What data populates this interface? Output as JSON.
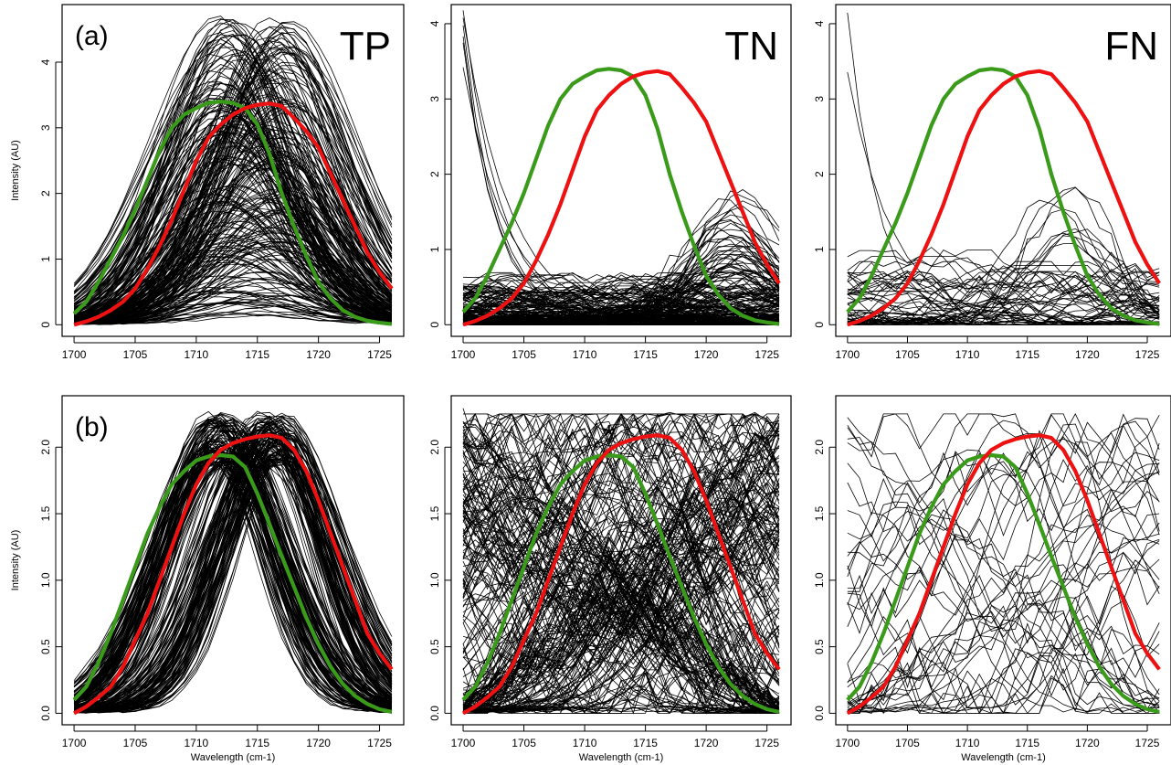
{
  "colors": {
    "reference_green": "#3a9a1a",
    "reference_red": "#ee1111",
    "sample_lines": "#000000"
  },
  "chart_data": [
    {
      "type": "line",
      "panel_id": "a-tp",
      "panel_tag": "(a)",
      "title": "TP",
      "ylabel": "Intensity (AU)",
      "xlabel": "",
      "xlim": [
        1700,
        1726
      ],
      "ylim": [
        0,
        4.7
      ],
      "x_ticks": [
        "1700",
        "1705",
        "1710",
        "1715",
        "1720",
        "1725"
      ],
      "y_ticks": [
        "0",
        "1",
        "2",
        "3",
        "4"
      ],
      "bundle": {
        "kind": "tp_gauss",
        "count": 260,
        "amp_min": 0.05,
        "amp_max": 4.7,
        "centers": [
          1712.5,
          1716.5
        ],
        "width": 5.2
      },
      "series": [
        {
          "color": "green",
          "x": [
            1700,
            1701,
            1702,
            1703,
            1704,
            1705,
            1706,
            1707,
            1708,
            1709,
            1710,
            1711,
            1712,
            1713,
            1714,
            1715,
            1716,
            1717,
            1718,
            1719,
            1720,
            1721,
            1722,
            1723,
            1724,
            1725,
            1726
          ],
          "values": [
            0.17,
            0.35,
            0.65,
            1.0,
            1.35,
            1.75,
            2.2,
            2.65,
            3.0,
            3.2,
            3.3,
            3.38,
            3.4,
            3.38,
            3.3,
            3.05,
            2.6,
            2.0,
            1.5,
            1.05,
            0.65,
            0.4,
            0.22,
            0.12,
            0.06,
            0.03,
            0.01
          ]
        },
        {
          "color": "red",
          "x": [
            1700,
            1701,
            1702,
            1703,
            1704,
            1705,
            1706,
            1707,
            1708,
            1709,
            1710,
            1711,
            1712,
            1713,
            1714,
            1715,
            1716,
            1717,
            1718,
            1719,
            1720,
            1721,
            1722,
            1723,
            1724,
            1725,
            1726
          ],
          "values": [
            0.0,
            0.05,
            0.12,
            0.22,
            0.35,
            0.55,
            0.85,
            1.2,
            1.6,
            2.05,
            2.5,
            2.85,
            3.05,
            3.2,
            3.3,
            3.35,
            3.37,
            3.33,
            3.15,
            2.95,
            2.7,
            2.3,
            1.9,
            1.5,
            1.1,
            0.8,
            0.55
          ]
        }
      ]
    },
    {
      "type": "line",
      "panel_id": "a-tn",
      "panel_tag": "",
      "title": "TN",
      "ylabel": "",
      "xlabel": "",
      "xlim": [
        1700,
        1726
      ],
      "ylim": [
        0,
        4.1
      ],
      "x_ticks": [
        "1700",
        "1705",
        "1710",
        "1715",
        "1720",
        "1725"
      ],
      "y_ticks": [
        "0",
        "1",
        "2",
        "3",
        "4"
      ],
      "bundle": {
        "kind": "tn_noise",
        "count": 160,
        "amp_max": 0.7,
        "hump_count": 40,
        "hump_center": 1722.5,
        "hump_amp_max": 1.75,
        "decay_count": 6
      },
      "series": [
        {
          "color": "green",
          "x": [
            1700,
            1701,
            1702,
            1703,
            1704,
            1705,
            1706,
            1707,
            1708,
            1709,
            1710,
            1711,
            1712,
            1713,
            1714,
            1715,
            1716,
            1717,
            1718,
            1719,
            1720,
            1721,
            1722,
            1723,
            1724,
            1725,
            1726
          ],
          "values": [
            0.17,
            0.35,
            0.65,
            1.0,
            1.35,
            1.75,
            2.2,
            2.65,
            3.0,
            3.2,
            3.3,
            3.38,
            3.4,
            3.38,
            3.3,
            3.05,
            2.6,
            2.0,
            1.5,
            1.05,
            0.65,
            0.4,
            0.22,
            0.12,
            0.06,
            0.03,
            0.01
          ]
        },
        {
          "color": "red",
          "x": [
            1700,
            1701,
            1702,
            1703,
            1704,
            1705,
            1706,
            1707,
            1708,
            1709,
            1710,
            1711,
            1712,
            1713,
            1714,
            1715,
            1716,
            1717,
            1718,
            1719,
            1720,
            1721,
            1722,
            1723,
            1724,
            1725,
            1726
          ],
          "values": [
            0.0,
            0.05,
            0.12,
            0.22,
            0.35,
            0.55,
            0.85,
            1.2,
            1.6,
            2.05,
            2.5,
            2.85,
            3.05,
            3.2,
            3.3,
            3.35,
            3.37,
            3.33,
            3.15,
            2.95,
            2.7,
            2.3,
            1.9,
            1.5,
            1.1,
            0.8,
            0.55
          ]
        }
      ]
    },
    {
      "type": "line",
      "panel_id": "a-fn",
      "panel_tag": "",
      "title": "FN",
      "ylabel": "",
      "xlabel": "",
      "xlim": [
        1700,
        1726
      ],
      "ylim": [
        0,
        4.1
      ],
      "x_ticks": [
        "1700",
        "1705",
        "1710",
        "1715",
        "1720",
        "1725"
      ],
      "y_ticks": [
        "0",
        "1",
        "2",
        "3",
        "4"
      ],
      "bundle": {
        "kind": "tn_noise",
        "count": 45,
        "amp_max": 1.1,
        "hump_count": 10,
        "hump_center": 1718,
        "hump_amp_max": 1.8,
        "decay_count": 2
      },
      "series": [
        {
          "color": "green",
          "x": [
            1700,
            1701,
            1702,
            1703,
            1704,
            1705,
            1706,
            1707,
            1708,
            1709,
            1710,
            1711,
            1712,
            1713,
            1714,
            1715,
            1716,
            1717,
            1718,
            1719,
            1720,
            1721,
            1722,
            1723,
            1724,
            1725,
            1726
          ],
          "values": [
            0.17,
            0.35,
            0.65,
            1.0,
            1.35,
            1.75,
            2.2,
            2.65,
            3.0,
            3.2,
            3.3,
            3.38,
            3.4,
            3.38,
            3.3,
            3.05,
            2.6,
            2.0,
            1.5,
            1.05,
            0.65,
            0.4,
            0.22,
            0.12,
            0.06,
            0.03,
            0.01
          ]
        },
        {
          "color": "red",
          "x": [
            1700,
            1701,
            1702,
            1703,
            1704,
            1705,
            1706,
            1707,
            1708,
            1709,
            1710,
            1711,
            1712,
            1713,
            1714,
            1715,
            1716,
            1717,
            1718,
            1719,
            1720,
            1721,
            1722,
            1723,
            1724,
            1725,
            1726
          ],
          "values": [
            0.0,
            0.05,
            0.12,
            0.22,
            0.35,
            0.55,
            0.85,
            1.2,
            1.6,
            2.05,
            2.5,
            2.85,
            3.05,
            3.2,
            3.3,
            3.35,
            3.37,
            3.33,
            3.15,
            2.95,
            2.7,
            2.3,
            1.9,
            1.5,
            1.1,
            0.8,
            0.55
          ]
        }
      ]
    },
    {
      "type": "line",
      "panel_id": "b-tp",
      "panel_tag": "(b)",
      "title": "",
      "ylabel": "Intensity (AU)",
      "xlabel": "Wavelength (cm-1)",
      "xlim": [
        1700,
        1726
      ],
      "ylim": [
        0,
        2.3
      ],
      "x_ticks": [
        "1700",
        "1705",
        "1710",
        "1715",
        "1720",
        "1725"
      ],
      "y_ticks": [
        "0.0",
        "0.5",
        "1.0",
        "1.5",
        "2.0"
      ],
      "bundle": {
        "kind": "tp_norm",
        "count": 220,
        "amp_min": 1.85,
        "amp_max": 2.25,
        "centers": [
          1712.0,
          1716.3
        ],
        "width": 4.6
      },
      "series": [
        {
          "color": "green",
          "x": [
            1700,
            1701,
            1702,
            1703,
            1704,
            1705,
            1706,
            1707,
            1708,
            1709,
            1710,
            1711,
            1712,
            1713,
            1714,
            1715,
            1716,
            1717,
            1718,
            1719,
            1720,
            1721,
            1722,
            1723,
            1724,
            1725,
            1726
          ],
          "values": [
            0.1,
            0.2,
            0.38,
            0.6,
            0.85,
            1.1,
            1.35,
            1.55,
            1.72,
            1.82,
            1.9,
            1.93,
            1.94,
            1.93,
            1.85,
            1.65,
            1.42,
            1.18,
            0.95,
            0.72,
            0.52,
            0.35,
            0.22,
            0.13,
            0.07,
            0.03,
            0.01
          ]
        },
        {
          "color": "red",
          "x": [
            1700,
            1701,
            1702,
            1703,
            1704,
            1705,
            1706,
            1707,
            1708,
            1709,
            1710,
            1711,
            1712,
            1713,
            1714,
            1715,
            1716,
            1717,
            1718,
            1719,
            1720,
            1721,
            1722,
            1723,
            1724,
            1725,
            1726
          ],
          "values": [
            0.0,
            0.05,
            0.12,
            0.2,
            0.35,
            0.55,
            0.75,
            1.0,
            1.25,
            1.5,
            1.72,
            1.88,
            1.98,
            2.03,
            2.06,
            2.08,
            2.09,
            2.07,
            1.98,
            1.82,
            1.6,
            1.35,
            1.1,
            0.85,
            0.6,
            0.45,
            0.33
          ]
        }
      ]
    },
    {
      "type": "line",
      "panel_id": "b-tn",
      "panel_tag": "",
      "title": "",
      "ylabel": "",
      "xlabel": "Wavelength (cm-1)",
      "xlim": [
        1700,
        1726
      ],
      "ylim": [
        0,
        2.3
      ],
      "x_ticks": [
        "1700",
        "1705",
        "1710",
        "1715",
        "1720",
        "1725"
      ],
      "y_ticks": [
        "0.0",
        "0.5",
        "1.0",
        "1.5",
        "2.0"
      ],
      "annotation": "*",
      "annotation_at": [
        1712,
        2.1
      ],
      "bundle": {
        "kind": "norm_noise",
        "count": 230,
        "amp_max": 2.25
      },
      "series": [
        {
          "color": "green",
          "x": [
            1700,
            1701,
            1702,
            1703,
            1704,
            1705,
            1706,
            1707,
            1708,
            1709,
            1710,
            1711,
            1712,
            1713,
            1714,
            1715,
            1716,
            1717,
            1718,
            1719,
            1720,
            1721,
            1722,
            1723,
            1724,
            1725,
            1726
          ],
          "values": [
            0.1,
            0.2,
            0.38,
            0.6,
            0.85,
            1.1,
            1.35,
            1.55,
            1.72,
            1.82,
            1.9,
            1.93,
            1.94,
            1.93,
            1.85,
            1.65,
            1.42,
            1.18,
            0.95,
            0.72,
            0.52,
            0.35,
            0.22,
            0.13,
            0.07,
            0.03,
            0.01
          ]
        },
        {
          "color": "red",
          "x": [
            1700,
            1701,
            1702,
            1703,
            1704,
            1705,
            1706,
            1707,
            1708,
            1709,
            1710,
            1711,
            1712,
            1713,
            1714,
            1715,
            1716,
            1717,
            1718,
            1719,
            1720,
            1721,
            1722,
            1723,
            1724,
            1725,
            1726
          ],
          "values": [
            0.0,
            0.05,
            0.12,
            0.2,
            0.35,
            0.55,
            0.75,
            1.0,
            1.25,
            1.5,
            1.72,
            1.88,
            1.98,
            2.03,
            2.06,
            2.08,
            2.09,
            2.07,
            1.98,
            1.82,
            1.6,
            1.35,
            1.1,
            0.85,
            0.6,
            0.45,
            0.33
          ]
        }
      ]
    },
    {
      "type": "line",
      "panel_id": "b-fn",
      "panel_tag": "",
      "title": "",
      "ylabel": "",
      "xlabel": "Wavelength (cm-1)",
      "xlim": [
        1700,
        1726
      ],
      "ylim": [
        0,
        2.3
      ],
      "x_ticks": [
        "1700",
        "1705",
        "1710",
        "1715",
        "1720",
        "1725"
      ],
      "y_ticks": [
        "0.0",
        "0.5",
        "1.0",
        "1.5",
        "2.0"
      ],
      "bundle": {
        "kind": "norm_noise",
        "count": 45,
        "amp_max": 2.25
      },
      "series": [
        {
          "color": "green",
          "x": [
            1700,
            1701,
            1702,
            1703,
            1704,
            1705,
            1706,
            1707,
            1708,
            1709,
            1710,
            1711,
            1712,
            1713,
            1714,
            1715,
            1716,
            1717,
            1718,
            1719,
            1720,
            1721,
            1722,
            1723,
            1724,
            1725,
            1726
          ],
          "values": [
            0.1,
            0.2,
            0.38,
            0.6,
            0.85,
            1.1,
            1.35,
            1.55,
            1.72,
            1.82,
            1.9,
            1.93,
            1.94,
            1.93,
            1.85,
            1.65,
            1.42,
            1.18,
            0.95,
            0.72,
            0.52,
            0.35,
            0.22,
            0.13,
            0.07,
            0.03,
            0.01
          ]
        },
        {
          "color": "red",
          "x": [
            1700,
            1701,
            1702,
            1703,
            1704,
            1705,
            1706,
            1707,
            1708,
            1709,
            1710,
            1711,
            1712,
            1713,
            1714,
            1715,
            1716,
            1717,
            1718,
            1719,
            1720,
            1721,
            1722,
            1723,
            1724,
            1725,
            1726
          ],
          "values": [
            0.0,
            0.05,
            0.12,
            0.2,
            0.35,
            0.55,
            0.75,
            1.0,
            1.25,
            1.5,
            1.72,
            1.88,
            1.98,
            2.03,
            2.06,
            2.08,
            2.09,
            2.07,
            1.98,
            1.82,
            1.6,
            1.35,
            1.1,
            0.85,
            0.6,
            0.45,
            0.33
          ]
        }
      ]
    }
  ]
}
